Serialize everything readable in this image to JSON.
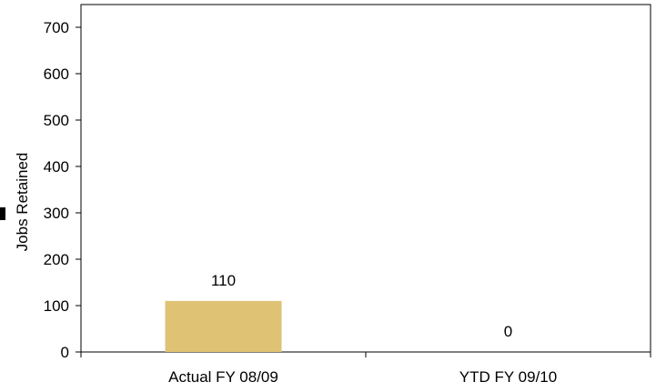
{
  "chart_data": {
    "type": "bar",
    "categories": [
      "Actual FY 08/09",
      "YTD FY 09/10"
    ],
    "values": [
      110,
      0
    ],
    "data_labels": [
      "110",
      "0"
    ],
    "title": "",
    "xlabel": "",
    "ylabel": "Jobs Retained",
    "ylim": [
      0,
      700
    ],
    "yticks": [
      0,
      100,
      200,
      300,
      400,
      500,
      600,
      700
    ],
    "grid": false,
    "legend": "none",
    "bar_color": "#E0C274",
    "axis_color": "#000000"
  }
}
